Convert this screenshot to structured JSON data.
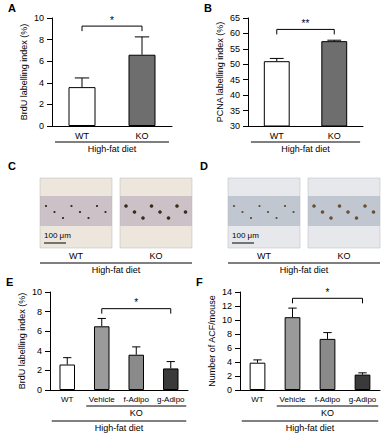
{
  "chart_data": [
    {
      "panel": "A",
      "type": "bar",
      "ylabel": "BrdU labelling index (%)",
      "categories": [
        "WT",
        "KO"
      ],
      "values": [
        3.6,
        6.6
      ],
      "errors": [
        0.85,
        1.65
      ],
      "colors": [
        "#ffffff",
        "#6e6e6e"
      ],
      "ylim": [
        0,
        10
      ],
      "yticks": [
        0,
        2,
        4,
        6,
        8,
        10
      ],
      "grid": false,
      "significance": [
        {
          "from": "WT",
          "to": "KO",
          "label": "*"
        }
      ],
      "groups": [],
      "footer": "High-fat diet"
    },
    {
      "panel": "B",
      "type": "bar",
      "ylabel": "PCNA labelling index (%)",
      "categories": [
        "WT",
        "KO"
      ],
      "values": [
        51.0,
        57.5
      ],
      "errors": [
        0.9,
        0.3
      ],
      "colors": [
        "#ffffff",
        "#6e6e6e"
      ],
      "ylim": [
        30,
        65
      ],
      "yticks": [
        30,
        35,
        40,
        45,
        50,
        55,
        60,
        65
      ],
      "grid": false,
      "significance": [
        {
          "from": "WT",
          "to": "KO",
          "label": "**"
        }
      ],
      "groups": [],
      "footer": "High-fat diet"
    },
    {
      "panel": "E",
      "type": "bar",
      "ylabel": "BrdU labelling index (%)",
      "categories": [
        "WT",
        "Vehicle",
        "f-Adipo",
        "g-Adipo"
      ],
      "values": [
        2.6,
        6.5,
        3.6,
        2.2
      ],
      "errors": [
        0.7,
        0.8,
        0.8,
        0.7
      ],
      "colors": [
        "#ffffff",
        "#9a9a9a",
        "#8a8a8a",
        "#3a3a3a"
      ],
      "ylim": [
        0,
        10
      ],
      "yticks": [
        0,
        2,
        4,
        6,
        8,
        10
      ],
      "grid": false,
      "significance": [
        {
          "from": "Vehicle",
          "to": "g-Adipo",
          "label": "*"
        }
      ],
      "groups": [
        {
          "label": "KO",
          "from": "Vehicle",
          "to": "g-Adipo"
        }
      ],
      "footer": "High-fat diet"
    },
    {
      "panel": "F",
      "type": "bar",
      "ylabel": "Number of ACF/mouse",
      "categories": [
        "WT",
        "Vehicle",
        "f-Adipo",
        "g-Adipo"
      ],
      "values": [
        3.9,
        10.4,
        7.3,
        2.2
      ],
      "errors": [
        0.4,
        1.3,
        0.9,
        0.25
      ],
      "colors": [
        "#ffffff",
        "#9a9a9a",
        "#8a8a8a",
        "#3a3a3a"
      ],
      "ylim": [
        0,
        14
      ],
      "yticks": [
        0,
        2,
        4,
        6,
        8,
        10,
        12,
        14
      ],
      "grid": false,
      "significance": [
        {
          "from": "Vehicle",
          "to": "g-Adipo",
          "label": "*"
        }
      ],
      "groups": [
        {
          "label": "KO",
          "from": "Vehicle",
          "to": "g-Adipo"
        }
      ],
      "footer": "High-fat diet"
    }
  ],
  "images": [
    {
      "panel": "C",
      "labels": [
        "WT",
        "KO"
      ],
      "footer": "High-fat diet",
      "scale_bar": "100 μm"
    },
    {
      "panel": "D",
      "labels": [
        "WT",
        "KO"
      ],
      "footer": "High-fat diet",
      "scale_bar": "100 μm"
    }
  ]
}
